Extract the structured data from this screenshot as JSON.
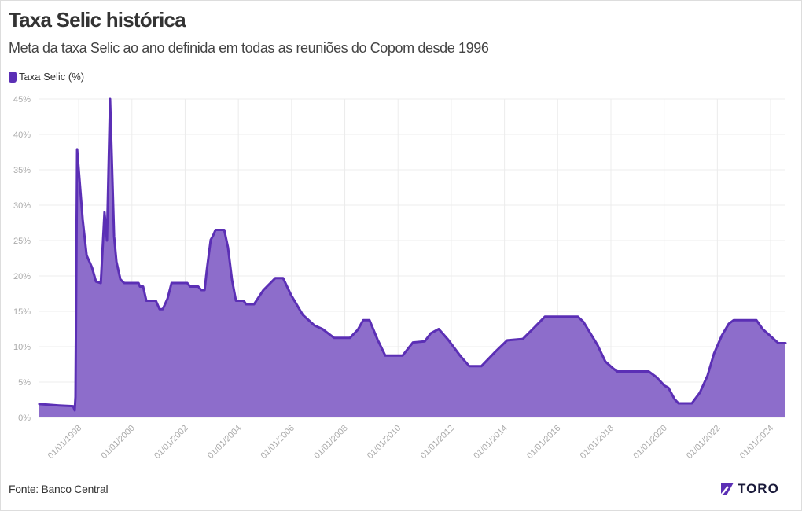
{
  "header": {
    "title": "Taxa Selic histórica",
    "subtitle": "Meta da taxa Selic ao ano definida em todas as reuniões do Copom desde 1996"
  },
  "footer": {
    "source_label": "Fonte:",
    "source_link": "Banco Central",
    "brand": "TORO"
  },
  "colors": {
    "fill": "#8d6dcb",
    "stroke": "#5b2fb5",
    "grid": "#ececec",
    "tick": "#aaaaaa"
  },
  "chart_data": {
    "type": "area",
    "title": "Taxa Selic histórica",
    "xlabel": "",
    "ylabel": "",
    "legend": [
      {
        "name": "Taxa Selic (%)",
        "color": "#5b2fb5"
      }
    ],
    "legend_position": "top-left",
    "grid": true,
    "xlim": [
      1996.52,
      2024.56
    ],
    "ylim": [
      0,
      45
    ],
    "x_ticks": [
      1998,
      2000,
      2002,
      2004,
      2006,
      2008,
      2010,
      2012,
      2014,
      2016,
      2018,
      2020,
      2022,
      2024
    ],
    "x_tick_labels": [
      "01/01/1998",
      "01/01/2000",
      "01/01/2002",
      "01/01/2004",
      "01/01/2006",
      "01/01/2008",
      "01/01/2010",
      "01/01/2012",
      "01/01/2014",
      "01/01/2016",
      "01/01/2018",
      "01/01/2020",
      "01/01/2022",
      "01/01/2024"
    ],
    "y_ticks": [
      0,
      5,
      10,
      15,
      20,
      25,
      30,
      35,
      40,
      45
    ],
    "y_tick_labels": [
      "0%",
      "5%",
      "10%",
      "15%",
      "20%",
      "25%",
      "30%",
      "35%",
      "40%",
      "45%"
    ],
    "series": [
      {
        "name": "Taxa Selic (%)",
        "points": [
          [
            1996.52,
            1.9
          ],
          [
            1997.26,
            1.7
          ],
          [
            1997.79,
            1.6
          ],
          [
            1997.85,
            1.0
          ],
          [
            1997.88,
            2.9
          ],
          [
            1997.94,
            37.9
          ],
          [
            1998.15,
            27.9
          ],
          [
            1998.3,
            22.9
          ],
          [
            1998.5,
            21.2
          ],
          [
            1998.65,
            19.2
          ],
          [
            1998.83,
            19.0
          ],
          [
            1998.97,
            29.0
          ],
          [
            1999.06,
            25.0
          ],
          [
            1999.18,
            45.0
          ],
          [
            1999.33,
            25.6
          ],
          [
            1999.42,
            22.0
          ],
          [
            1999.57,
            19.5
          ],
          [
            1999.71,
            19.0
          ],
          [
            2000.25,
            19.0
          ],
          [
            2000.3,
            18.5
          ],
          [
            2000.42,
            18.5
          ],
          [
            2000.54,
            16.5
          ],
          [
            2000.9,
            16.5
          ],
          [
            2001.04,
            15.3
          ],
          [
            2001.16,
            15.3
          ],
          [
            2001.34,
            16.8
          ],
          [
            2001.49,
            19.0
          ],
          [
            2002.08,
            19.0
          ],
          [
            2002.19,
            18.5
          ],
          [
            2002.49,
            18.5
          ],
          [
            2002.61,
            18.0
          ],
          [
            2002.73,
            18.0
          ],
          [
            2002.82,
            21.0
          ],
          [
            2002.96,
            25.1
          ],
          [
            2003.05,
            25.7
          ],
          [
            2003.14,
            26.5
          ],
          [
            2003.47,
            26.5
          ],
          [
            2003.61,
            24.0
          ],
          [
            2003.76,
            19.5
          ],
          [
            2003.91,
            16.5
          ],
          [
            2004.2,
            16.5
          ],
          [
            2004.29,
            16.0
          ],
          [
            2004.59,
            16.0
          ],
          [
            2004.94,
            18.0
          ],
          [
            2005.39,
            19.7
          ],
          [
            2005.68,
            19.7
          ],
          [
            2005.98,
            17.3
          ],
          [
            2006.42,
            14.5
          ],
          [
            2006.86,
            13.0
          ],
          [
            2007.16,
            12.5
          ],
          [
            2007.6,
            11.25
          ],
          [
            2008.19,
            11.25
          ],
          [
            2008.49,
            12.4
          ],
          [
            2008.69,
            13.75
          ],
          [
            2008.93,
            13.75
          ],
          [
            2009.23,
            11.0
          ],
          [
            2009.52,
            8.75
          ],
          [
            2010.17,
            8.75
          ],
          [
            2010.56,
            10.6
          ],
          [
            2011.0,
            10.75
          ],
          [
            2011.23,
            11.9
          ],
          [
            2011.53,
            12.5
          ],
          [
            2011.88,
            11.0
          ],
          [
            2012.33,
            8.75
          ],
          [
            2012.68,
            7.25
          ],
          [
            2013.13,
            7.25
          ],
          [
            2013.66,
            9.3
          ],
          [
            2014.1,
            10.9
          ],
          [
            2014.69,
            11.1
          ],
          [
            2015.13,
            12.75
          ],
          [
            2015.52,
            14.25
          ],
          [
            2016.76,
            14.25
          ],
          [
            2016.97,
            13.5
          ],
          [
            2017.5,
            10.2
          ],
          [
            2017.79,
            7.9
          ],
          [
            2018.09,
            6.9
          ],
          [
            2018.24,
            6.5
          ],
          [
            2019.42,
            6.5
          ],
          [
            2019.71,
            5.7
          ],
          [
            2020.01,
            4.5
          ],
          [
            2020.16,
            4.2
          ],
          [
            2020.39,
            2.6
          ],
          [
            2020.54,
            2.0
          ],
          [
            2021.04,
            2.0
          ],
          [
            2021.34,
            3.5
          ],
          [
            2021.63,
            5.9
          ],
          [
            2021.87,
            9.0
          ],
          [
            2022.17,
            11.6
          ],
          [
            2022.43,
            13.25
          ],
          [
            2022.61,
            13.75
          ],
          [
            2023.47,
            13.75
          ],
          [
            2023.7,
            12.5
          ],
          [
            2024.29,
            10.5
          ],
          [
            2024.56,
            10.5
          ]
        ]
      }
    ]
  }
}
